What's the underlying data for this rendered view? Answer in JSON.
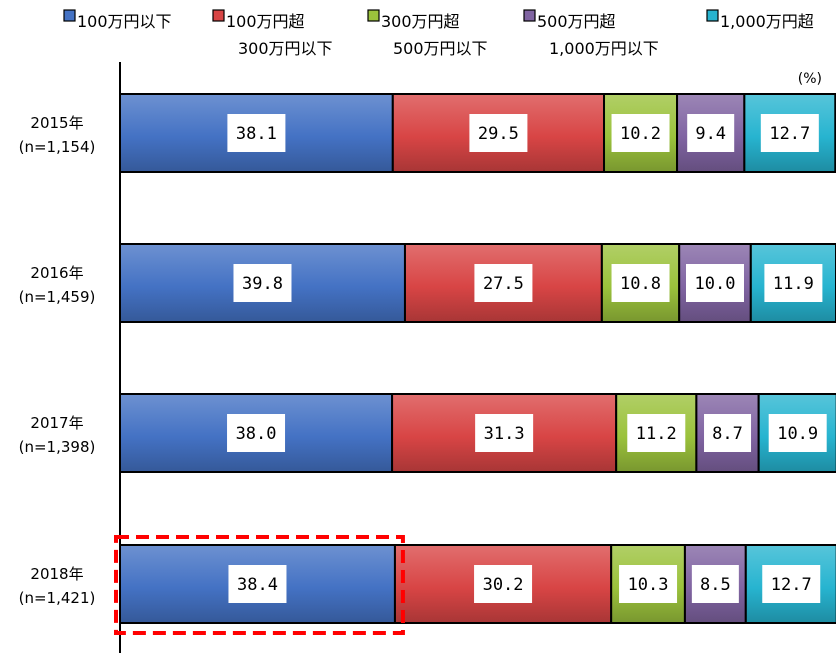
{
  "chart_data": {
    "type": "bar",
    "orientation": "horizontal",
    "stacked": true,
    "unit_label": "(%)",
    "xlim": [
      0,
      100
    ],
    "grid": false,
    "legend_position": "top",
    "categories": [
      "2015年\n(n=1,154)",
      "2016年\n(n=1,459)",
      "2017年\n(n=1,398)",
      "2018年\n(n=1,421)"
    ],
    "series": [
      {
        "name": "100万円以下",
        "color": "#4472c4",
        "values": [
          38.1,
          39.8,
          38.0,
          38.4
        ]
      },
      {
        "name": "100万円超\n300万円以下",
        "color": "#d84545",
        "values": [
          29.5,
          27.5,
          31.3,
          30.2
        ]
      },
      {
        "name": "300万円超\n500万円以下",
        "color": "#9bc23c",
        "values": [
          10.2,
          10.8,
          11.2,
          10.3
        ]
      },
      {
        "name": "500万円超\n1,000万円以下",
        "color": "#8064a2",
        "values": [
          9.4,
          10.0,
          8.7,
          8.5
        ]
      },
      {
        "name": "1,000万円超",
        "color": "#27b4d0",
        "values": [
          12.7,
          11.9,
          10.9,
          12.7
        ]
      }
    ],
    "value_labels": [
      [
        "38.1",
        "29.5",
        "10.2",
        "9.4",
        "12.7"
      ],
      [
        "39.8",
        "27.5",
        "10.8",
        "10.0",
        "11.9"
      ],
      [
        "38.0",
        "31.3",
        "11.2",
        "8.7",
        "10.9"
      ],
      [
        "38.4",
        "30.2",
        "10.3",
        "8.5",
        "12.7"
      ]
    ],
    "highlight": {
      "category_index": 3,
      "series_index": 0,
      "style": "dashed",
      "color": "#ff0000"
    }
  }
}
